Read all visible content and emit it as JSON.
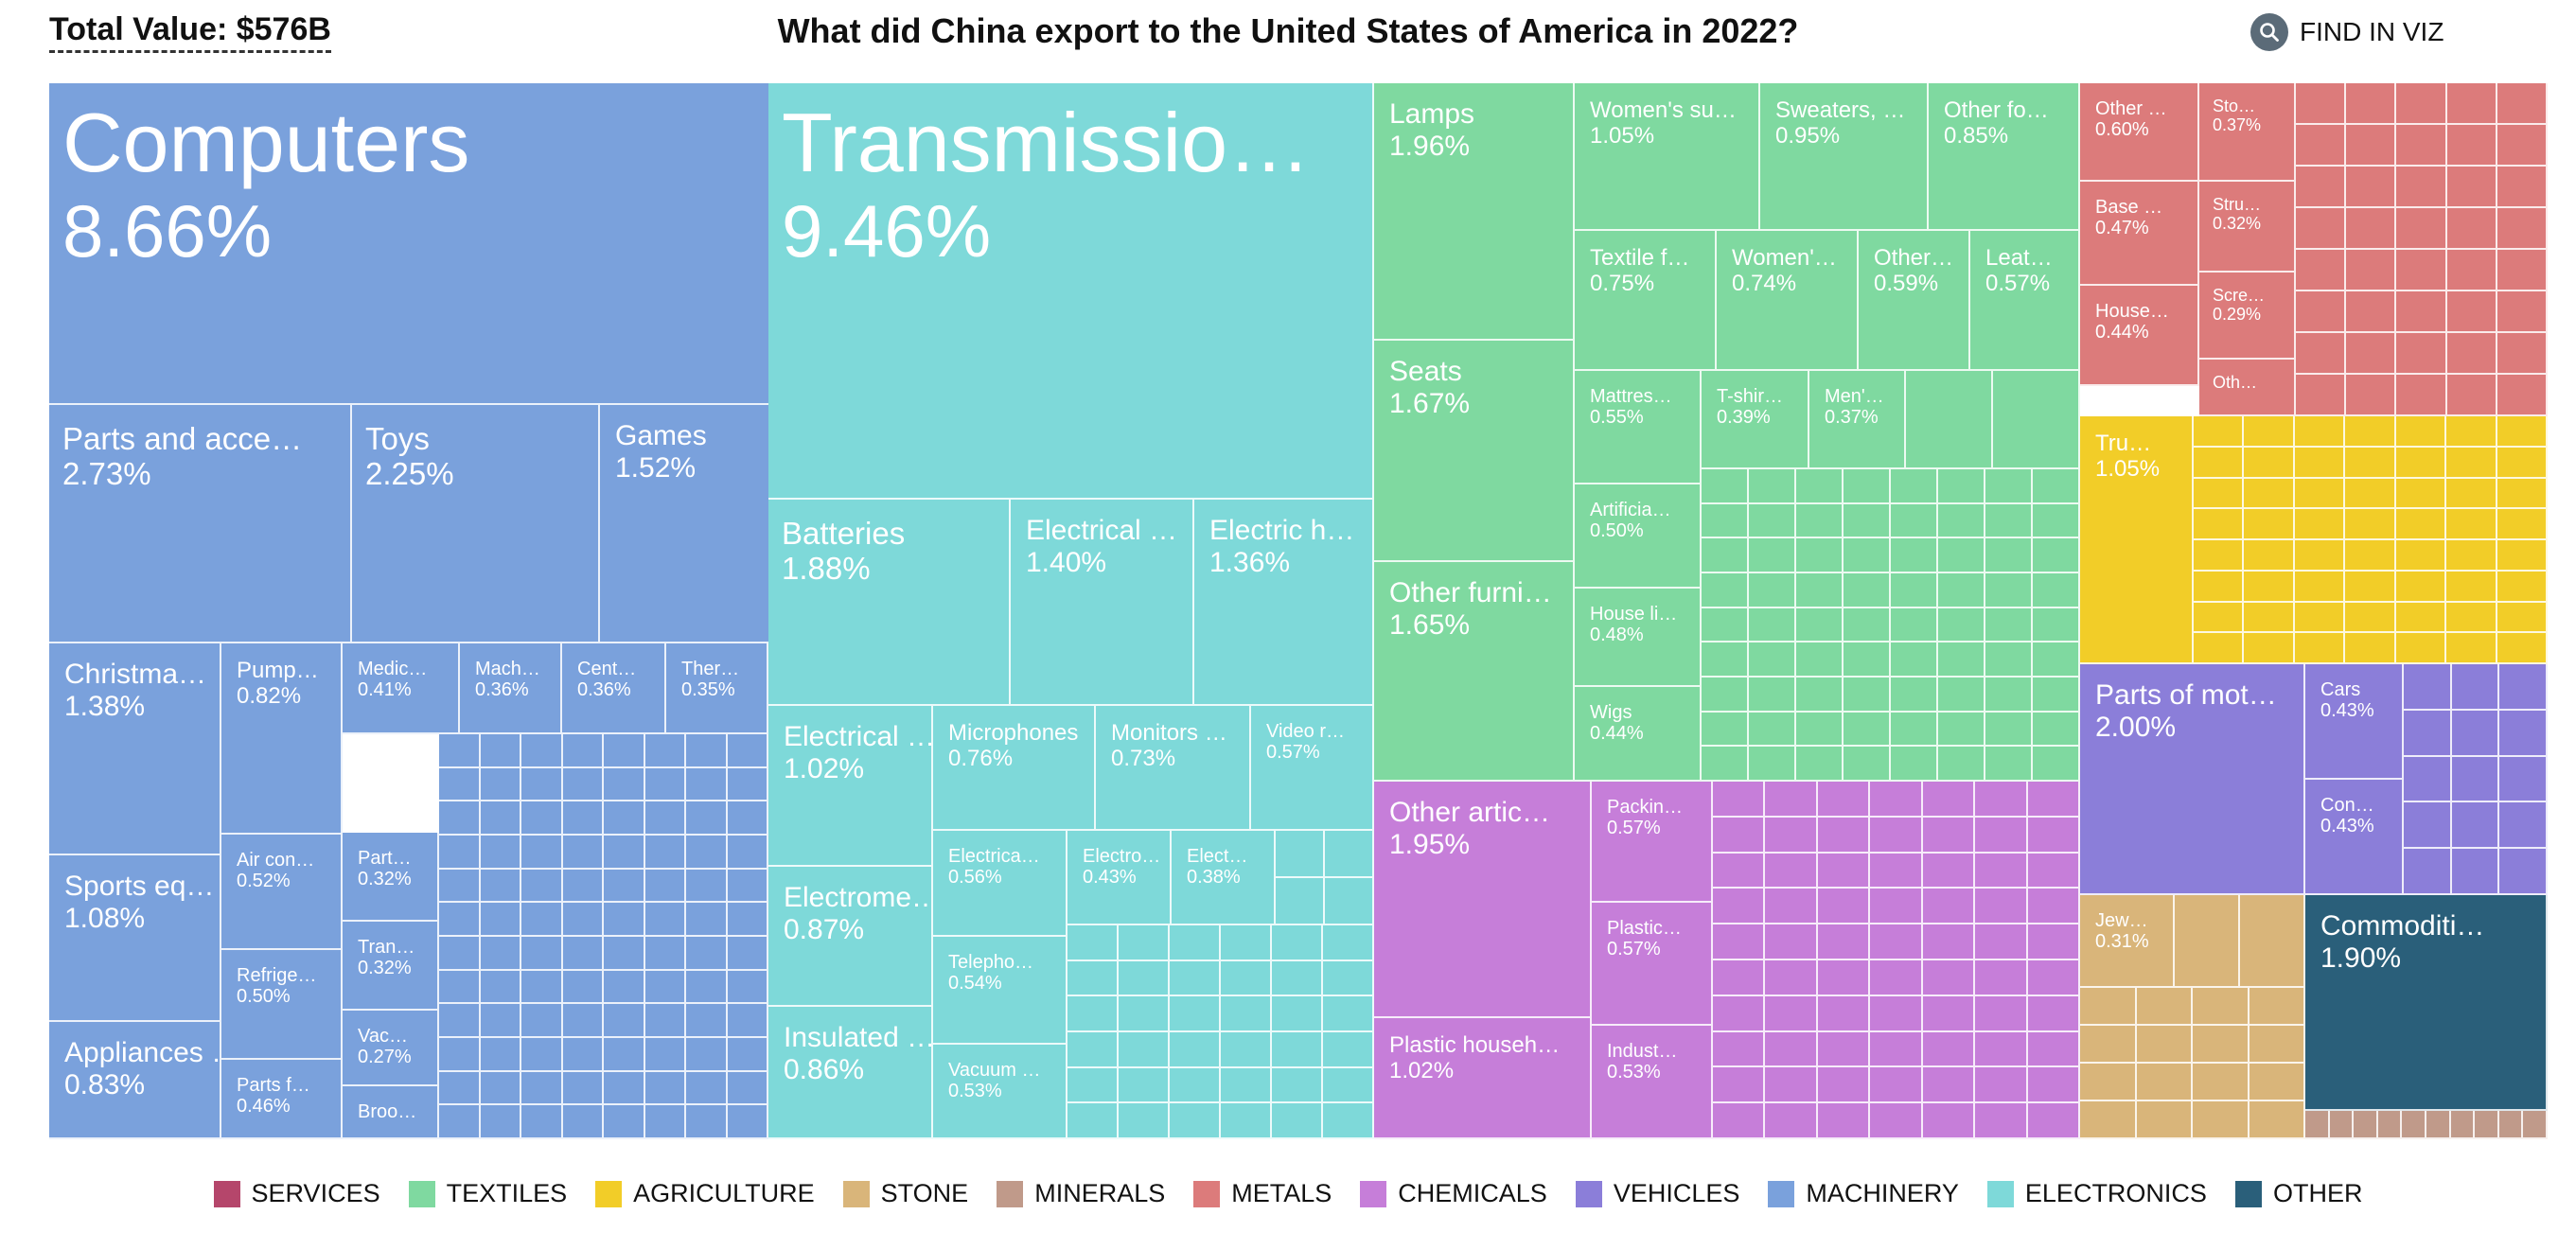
{
  "header": {
    "total_label": "Total Value: $576B",
    "title": "What did China export to the United States of America in 2022?",
    "find_label": "FIND IN VIZ",
    "find_icon": "search-icon"
  },
  "legend": [
    {
      "label": "SERVICES",
      "color": "#b5466b"
    },
    {
      "label": "TEXTILES",
      "color": "#7fd9a0"
    },
    {
      "label": "AGRICULTURE",
      "color": "#f2cd28"
    },
    {
      "label": "STONE",
      "color": "#d9b57a"
    },
    {
      "label": "MINERALS",
      "color": "#c09a8a"
    },
    {
      "label": "METALS",
      "color": "#dc7b7b"
    },
    {
      "label": "CHEMICALS",
      "color": "#c67ed9"
    },
    {
      "label": "VEHICLES",
      "color": "#8b7ed9"
    },
    {
      "label": "MACHINERY",
      "color": "#7aa1dc"
    },
    {
      "label": "ELECTRONICS",
      "color": "#7ed9d9"
    },
    {
      "label": "OTHER",
      "color": "#2a5f7a"
    }
  ],
  "chart_data": {
    "type": "treemap",
    "title": "What did China export to the United States of America in 2022?",
    "total_value": "$576B",
    "units": "share of total export value (%)",
    "labeled_items": [
      {
        "label": "Computers",
        "share": "8.66%",
        "sector": "MACHINERY"
      },
      {
        "label": "Parts and acce…",
        "share": "2.73%",
        "sector": "MACHINERY"
      },
      {
        "label": "Toys",
        "share": "2.25%",
        "sector": "MACHINERY"
      },
      {
        "label": "Games",
        "share": "1.52%",
        "sector": "MACHINERY"
      },
      {
        "label": "Christma…",
        "share": "1.38%",
        "sector": "MACHINERY"
      },
      {
        "label": "Pump…",
        "share": "0.82%",
        "sector": "MACHINERY"
      },
      {
        "label": "Medic…",
        "share": "0.41%",
        "sector": "MACHINERY"
      },
      {
        "label": "Mach…",
        "share": "0.36%",
        "sector": "MACHINERY"
      },
      {
        "label": "Cent…",
        "share": "0.36%",
        "sector": "MACHINERY"
      },
      {
        "label": "Ther…",
        "share": "0.35%",
        "sector": "MACHINERY"
      },
      {
        "label": "Sports eq…",
        "share": "1.08%",
        "sector": "MACHINERY"
      },
      {
        "label": "Air con…",
        "share": "0.52%",
        "sector": "MACHINERY"
      },
      {
        "label": "Part…",
        "share": "0.32%",
        "sector": "MACHINERY"
      },
      {
        "label": "Refrige…",
        "share": "0.50%",
        "sector": "MACHINERY"
      },
      {
        "label": "Tran…",
        "share": "0.32%",
        "sector": "MACHINERY"
      },
      {
        "label": "Appliances …",
        "share": "0.83%",
        "sector": "MACHINERY"
      },
      {
        "label": "Parts f…",
        "share": "0.46%",
        "sector": "MACHINERY"
      },
      {
        "label": "Vac…",
        "share": "0.27%",
        "sector": "MACHINERY"
      },
      {
        "label": "Broo…",
        "share": "",
        "sector": "MACHINERY"
      },
      {
        "label": "Transmissio…",
        "share": "9.46%",
        "sector": "ELECTRONICS"
      },
      {
        "label": "Batteries",
        "share": "1.88%",
        "sector": "ELECTRONICS"
      },
      {
        "label": "Electrical …",
        "share": "1.40%",
        "sector": "ELECTRONICS"
      },
      {
        "label": "Electric h…",
        "share": "1.36%",
        "sector": "ELECTRONICS"
      },
      {
        "label": "Electrical …",
        "share": "1.02%",
        "sector": "ELECTRONICS"
      },
      {
        "label": "Microphones",
        "share": "0.76%",
        "sector": "ELECTRONICS"
      },
      {
        "label": "Monitors …",
        "share": "0.73%",
        "sector": "ELECTRONICS"
      },
      {
        "label": "Video r…",
        "share": "0.57%",
        "sector": "ELECTRONICS"
      },
      {
        "label": "Electrica…",
        "share": "0.56%",
        "sector": "ELECTRONICS"
      },
      {
        "label": "Electro…",
        "share": "0.43%",
        "sector": "ELECTRONICS"
      },
      {
        "label": "Elect…",
        "share": "0.38%",
        "sector": "ELECTRONICS"
      },
      {
        "label": "Electrome…",
        "share": "0.87%",
        "sector": "ELECTRONICS"
      },
      {
        "label": "Telepho…",
        "share": "0.54%",
        "sector": "ELECTRONICS"
      },
      {
        "label": "Insulated …",
        "share": "0.86%",
        "sector": "ELECTRONICS"
      },
      {
        "label": "Vacuum …",
        "share": "0.53%",
        "sector": "ELECTRONICS"
      },
      {
        "label": "Lamps",
        "share": "1.96%",
        "sector": "TEXTILES"
      },
      {
        "label": "Seats",
        "share": "1.67%",
        "sector": "TEXTILES"
      },
      {
        "label": "Other furni…",
        "share": "1.65%",
        "sector": "TEXTILES"
      },
      {
        "label": "Women's su…",
        "share": "1.05%",
        "sector": "TEXTILES"
      },
      {
        "label": "Sweaters, …",
        "share": "0.95%",
        "sector": "TEXTILES"
      },
      {
        "label": "Other fo…",
        "share": "0.85%",
        "sector": "TEXTILES"
      },
      {
        "label": "Textile f…",
        "share": "0.75%",
        "sector": "TEXTILES"
      },
      {
        "label": "Women'…",
        "share": "0.74%",
        "sector": "TEXTILES"
      },
      {
        "label": "Other…",
        "share": "0.59%",
        "sector": "TEXTILES"
      },
      {
        "label": "Leat…",
        "share": "0.57%",
        "sector": "TEXTILES"
      },
      {
        "label": "Mattres…",
        "share": "0.55%",
        "sector": "TEXTILES"
      },
      {
        "label": "T-shir…",
        "share": "0.39%",
        "sector": "TEXTILES"
      },
      {
        "label": "Men'…",
        "share": "0.37%",
        "sector": "TEXTILES"
      },
      {
        "label": "Artificia…",
        "share": "0.50%",
        "sector": "TEXTILES"
      },
      {
        "label": "House li…",
        "share": "0.48%",
        "sector": "TEXTILES"
      },
      {
        "label": "Wigs",
        "share": "0.44%",
        "sector": "TEXTILES"
      },
      {
        "label": "Other artic…",
        "share": "1.95%",
        "sector": "CHEMICALS"
      },
      {
        "label": "Packin…",
        "share": "0.57%",
        "sector": "CHEMICALS"
      },
      {
        "label": "Plastic…",
        "share": "0.57%",
        "sector": "CHEMICALS"
      },
      {
        "label": "Plastic househ…",
        "share": "1.02%",
        "sector": "CHEMICALS"
      },
      {
        "label": "Indust…",
        "share": "0.53%",
        "sector": "CHEMICALS"
      },
      {
        "label": "Other …",
        "share": "0.60%",
        "sector": "METALS"
      },
      {
        "label": "Sto…",
        "share": "0.37%",
        "sector": "METALS"
      },
      {
        "label": "Base …",
        "share": "0.47%",
        "sector": "METALS"
      },
      {
        "label": "Stru…",
        "share": "0.32%",
        "sector": "METALS"
      },
      {
        "label": "Scre…",
        "share": "0.29%",
        "sector": "METALS"
      },
      {
        "label": "House…",
        "share": "0.44%",
        "sector": "METALS"
      },
      {
        "label": "Oth…",
        "share": "",
        "sector": "METALS"
      },
      {
        "label": "Tru…",
        "share": "1.05%",
        "sector": "AGRICULTURE"
      },
      {
        "label": "Parts of mot…",
        "share": "2.00%",
        "sector": "VEHICLES"
      },
      {
        "label": "Cars",
        "share": "0.43%",
        "sector": "VEHICLES"
      },
      {
        "label": "Con…",
        "share": "0.43%",
        "sector": "VEHICLES"
      },
      {
        "label": "Jew…",
        "share": "0.31%",
        "sector": "STONE"
      },
      {
        "label": "Commoditi…",
        "share": "1.90%",
        "sector": "OTHER"
      }
    ],
    "legend": [
      "SERVICES",
      "TEXTILES",
      "AGRICULTURE",
      "STONE",
      "MINERALS",
      "METALS",
      "CHEMICALS",
      "VEHICLES",
      "MACHINERY",
      "ELECTRONICS",
      "OTHER"
    ]
  }
}
